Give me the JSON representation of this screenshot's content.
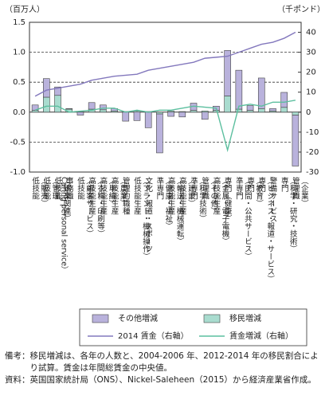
{
  "chart_data": {
    "type": "bar",
    "y_label": "（百万人）",
    "y2_label": "（千ポンド）",
    "categories": [
      "低技能\n（販売）",
      "低技能\n（管理\nCaring personal service）",
      "低技能\n（娯楽関連）",
      "事務職",
      "低技能\n（顧客サービス）",
      "高技能生産\n（衣料・印刷等）",
      "高技能生産\n（単純）",
      "高技能生産\n（農業）",
      "管理的職種",
      "低技能生産\n（プラント・機械操作）",
      "文化・報道・スポーツ",
      "準専門\n（健康・福祉）",
      "高技能生産\n（輸送・機械運転）",
      "高技能生産\n（建設）",
      "準専門\n（科学技術）",
      "管理職\n（その他）",
      "高技能生産\n（金属・電子電機）",
      "専門（健康）",
      "準専門\n（民間・公共サービス）",
      "専門\n（教育）",
      "専門\n（ビジネス・報道・サービス）",
      "警備サービス",
      "専門\n（科学・研究・技術）",
      "管理職\n（企業）"
    ],
    "series": [
      {
        "name": "移民増減",
        "type": "bar",
        "color": "#a9dccf",
        "values": [
          0.03,
          0.25,
          0.28,
          0.05,
          0.01,
          0.05,
          0.04,
          0.02,
          0.01,
          0.02,
          0.01,
          -0.03,
          0.02,
          0.01,
          0.03,
          0.02,
          0.03,
          0.27,
          0.05,
          0.03,
          0.06,
          0.02,
          0.08,
          -0.05
        ]
      },
      {
        "name": "その他増減",
        "type": "bar",
        "color": "#b9b2dc",
        "values": [
          0.09,
          0.31,
          0.14,
          0.01,
          -0.05,
          0.11,
          0.08,
          0.04,
          -0.15,
          -0.14,
          -0.26,
          -0.65,
          -0.07,
          -0.08,
          0.12,
          -0.12,
          0.07,
          0.76,
          0.65,
          0.08,
          0.51,
          0.04,
          0.25,
          -0.85
        ]
      },
      {
        "name": "2014 賃金（右軸）",
        "type": "line",
        "axis": "y2",
        "color": "#8378bd",
        "values": [
          8,
          11,
          12,
          13,
          14,
          16,
          17,
          18,
          18.5,
          19,
          21,
          22,
          23,
          24,
          25,
          27,
          27.5,
          28,
          30,
          32,
          34,
          35,
          37,
          40
        ]
      },
      {
        "name": "賃金増減（右軸）",
        "type": "line",
        "axis": "y2",
        "color": "#5cbf9f",
        "values": [
          1,
          3,
          3,
          0,
          0.5,
          1,
          2,
          2,
          0,
          1,
          0,
          1,
          1,
          2,
          3,
          2.5,
          2,
          -19,
          3,
          4,
          3,
          5,
          5,
          6
        ]
      }
    ],
    "legend_order": [
      1,
      0,
      2,
      3
    ],
    "ylim": [
      -1.0,
      1.5
    ],
    "yticks": [
      {
        "value": -1.0,
        "label": "-1.0"
      },
      -0.5,
      {
        "value": 0.0,
        "label": "0.0"
      },
      0.5,
      {
        "value": 1.0,
        "label": "1.0"
      },
      1.5
    ],
    "y2lim": [
      -30,
      45
    ],
    "y2ticks": [
      -30,
      -20,
      -10,
      0,
      10,
      20,
      30,
      40
    ],
    "grid": true
  },
  "notes": [
    "備考：移民増減は、各年の人数と、2004-2006 年、2012-2014 年の移民割合により試算。賃金は年間総賃金の中央値。",
    "資料：英国国家統計局（ONS）、Nickel-Saleheen（2015）から経済産業省作成。"
  ]
}
